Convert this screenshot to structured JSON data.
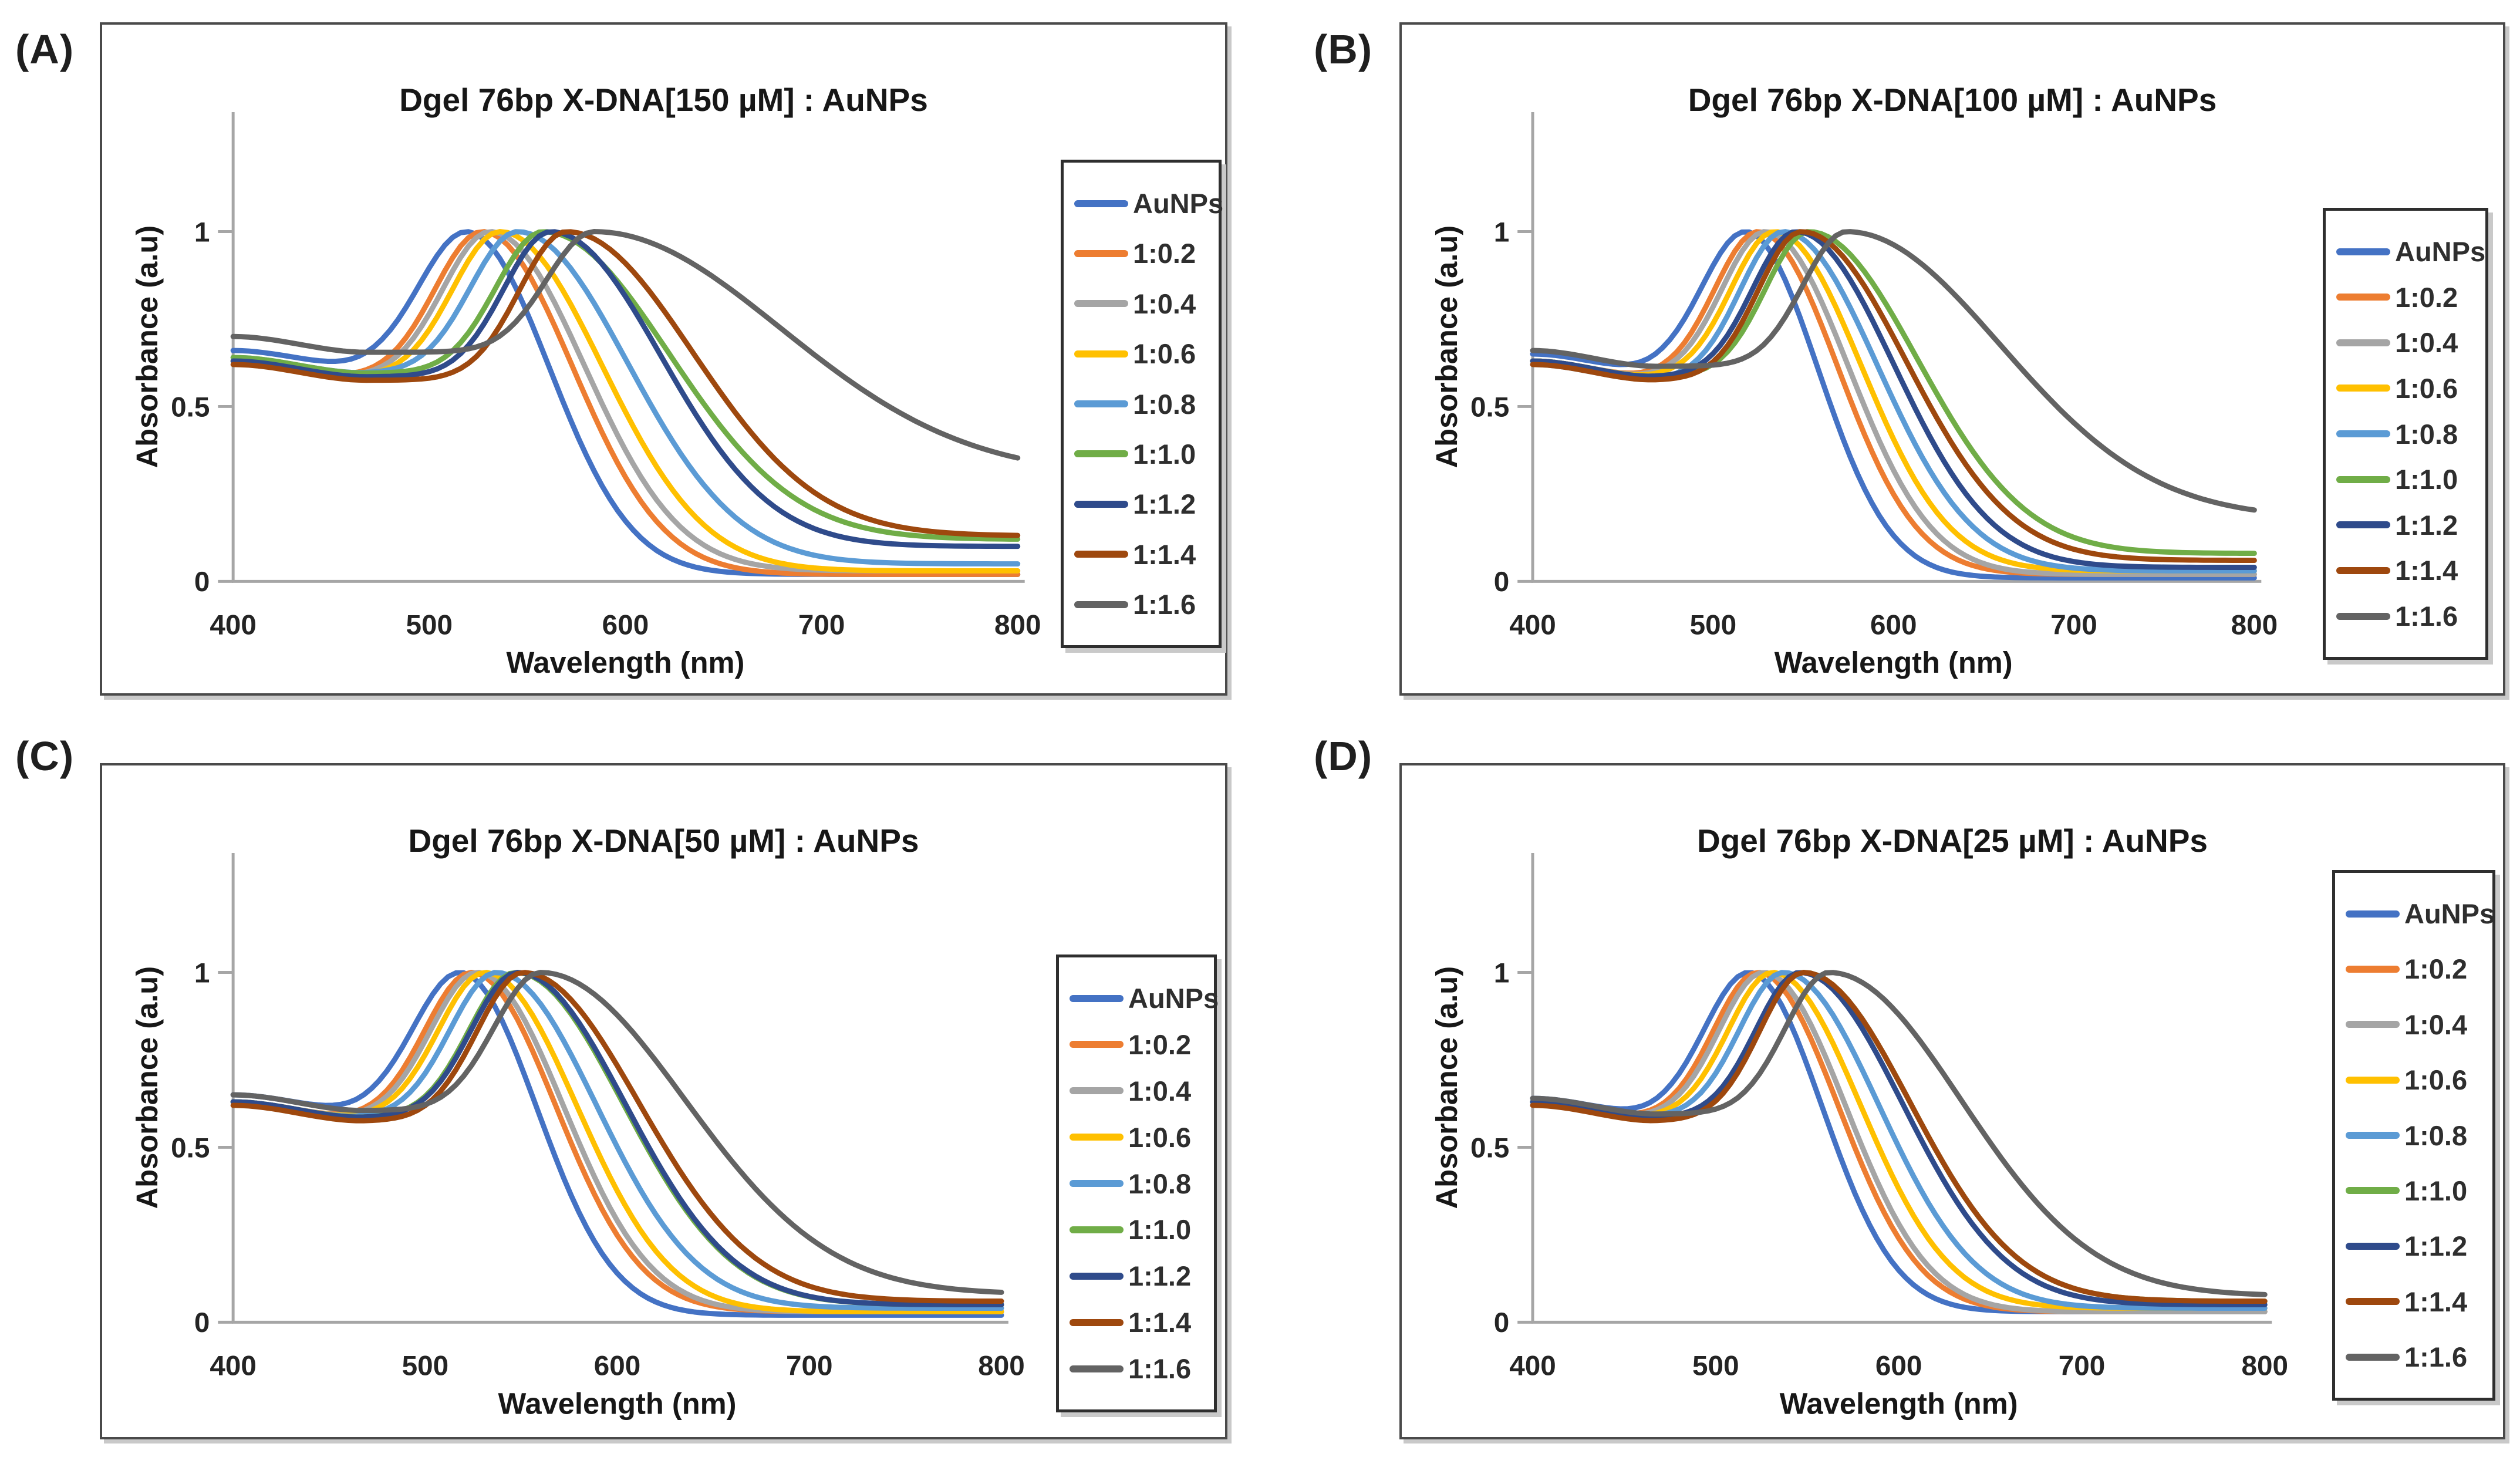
{
  "figure": {
    "layout": "2x2 grid of UV-Vis absorbance spectra panels",
    "background_color": "#ffffff"
  },
  "axes": {
    "x_label": "Wavelength (nm)",
    "y_label": "Absorbance (a.u)",
    "x_tick_labels": [
      "400",
      "500",
      "600",
      "700",
      "800"
    ],
    "y_tick_labels": [
      "0",
      "0.5",
      "1"
    ],
    "x_range": [
      400,
      800
    ],
    "y_range": [
      0,
      1.2
    ],
    "grid": "off",
    "axis_color": "#a6a6a6"
  },
  "legend": {
    "position": "right-inside",
    "entries": [
      "AuNPs",
      "1:0.2",
      "1:0.4",
      "1:0.6",
      "1:0.8",
      "1:1.0",
      "1:1.2",
      "1:1.4",
      "1:1.6"
    ]
  },
  "chart_data": [
    {
      "panel_label": "(A)",
      "type": "line",
      "title": "Dgel 76bp X-DNA[150 µM] : AuNPs",
      "xlabel": "Wavelength (nm)",
      "ylabel": "Absorbance (a.u)",
      "x_range": [
        400,
        800
      ],
      "x_ticks": [
        400,
        500,
        600,
        700,
        800
      ],
      "y_ticks": [
        0,
        0.5,
        1
      ],
      "normalization": "all spectra peak-normalized to 1.0",
      "series": [
        {
          "name": "AuNPs",
          "color": "#4472C4",
          "peak_nm": 519,
          "peak_abs": 1.0,
          "abs_400nm": 0.66,
          "abs_800nm": 0.02,
          "right_halfwidth_nm": 42
        },
        {
          "name": "1:0.2",
          "color": "#ED7D31",
          "peak_nm": 527,
          "peak_abs": 1.0,
          "abs_400nm": 0.63,
          "abs_800nm": 0.02,
          "right_halfwidth_nm": 46
        },
        {
          "name": "1:0.4",
          "color": "#A5A5A5",
          "peak_nm": 531,
          "peak_abs": 1.0,
          "abs_400nm": 0.63,
          "abs_800nm": 0.03,
          "right_halfwidth_nm": 48
        },
        {
          "name": "1:0.6",
          "color": "#FFC000",
          "peak_nm": 536,
          "peak_abs": 1.0,
          "abs_400nm": 0.63,
          "abs_800nm": 0.03,
          "right_halfwidth_nm": 52
        },
        {
          "name": "1:0.8",
          "color": "#5B9BD5",
          "peak_nm": 545,
          "peak_abs": 1.0,
          "abs_400nm": 0.64,
          "abs_800nm": 0.05,
          "right_halfwidth_nm": 56
        },
        {
          "name": "1:1.0",
          "color": "#70AD47",
          "peak_nm": 558,
          "peak_abs": 1.0,
          "abs_400nm": 0.64,
          "abs_800nm": 0.12,
          "right_halfwidth_nm": 64
        },
        {
          "name": "1:1.2",
          "color": "#2F4B8B",
          "peak_nm": 562,
          "peak_abs": 1.0,
          "abs_400nm": 0.63,
          "abs_800nm": 0.1,
          "right_halfwidth_nm": 56
        },
        {
          "name": "1:1.4",
          "color": "#9E480E",
          "peak_nm": 570,
          "peak_abs": 1.0,
          "abs_400nm": 0.62,
          "abs_800nm": 0.13,
          "right_halfwidth_nm": 64
        },
        {
          "name": "1:1.6",
          "color": "#636363",
          "peak_nm": 584,
          "peak_abs": 1.0,
          "abs_400nm": 0.7,
          "abs_800nm": 0.3,
          "right_halfwidth_nm": 95
        }
      ]
    },
    {
      "panel_label": "(B)",
      "type": "line",
      "title": "Dgel 76bp X-DNA[100 µM] : AuNPs",
      "xlabel": "Wavelength (nm)",
      "ylabel": "Absorbance (a.u)",
      "x_range": [
        400,
        800
      ],
      "x_ticks": [
        400,
        500,
        600,
        700,
        800
      ],
      "y_ticks": [
        0,
        0.5,
        1
      ],
      "normalization": "all spectra peak-normalized to 1.0",
      "series": [
        {
          "name": "AuNPs",
          "color": "#4472C4",
          "peak_nm": 518,
          "peak_abs": 1.0,
          "abs_400nm": 0.65,
          "abs_800nm": 0.01,
          "right_halfwidth_nm": 40
        },
        {
          "name": "1:0.2",
          "color": "#ED7D31",
          "peak_nm": 525,
          "peak_abs": 1.0,
          "abs_400nm": 0.63,
          "abs_800nm": 0.02,
          "right_halfwidth_nm": 44
        },
        {
          "name": "1:0.4",
          "color": "#A5A5A5",
          "peak_nm": 529,
          "peak_abs": 1.0,
          "abs_400nm": 0.63,
          "abs_800nm": 0.02,
          "right_halfwidth_nm": 46
        },
        {
          "name": "1:0.6",
          "color": "#FFC000",
          "peak_nm": 534,
          "peak_abs": 1.0,
          "abs_400nm": 0.63,
          "abs_800nm": 0.03,
          "right_halfwidth_nm": 48
        },
        {
          "name": "1:0.8",
          "color": "#5B9BD5",
          "peak_nm": 539,
          "peak_abs": 1.0,
          "abs_400nm": 0.62,
          "abs_800nm": 0.03,
          "right_halfwidth_nm": 52
        },
        {
          "name": "1:1.0",
          "color": "#70AD47",
          "peak_nm": 553,
          "peak_abs": 1.0,
          "abs_400nm": 0.63,
          "abs_800nm": 0.08,
          "right_halfwidth_nm": 60
        },
        {
          "name": "1:1.2",
          "color": "#2F4B8B",
          "peak_nm": 546,
          "peak_abs": 1.0,
          "abs_400nm": 0.63,
          "abs_800nm": 0.04,
          "right_halfwidth_nm": 54
        },
        {
          "name": "1:1.4",
          "color": "#9E480E",
          "peak_nm": 549,
          "peak_abs": 1.0,
          "abs_400nm": 0.62,
          "abs_800nm": 0.06,
          "right_halfwidth_nm": 58
        },
        {
          "name": "1:1.6",
          "color": "#636363",
          "peak_nm": 574,
          "peak_abs": 1.0,
          "abs_400nm": 0.66,
          "abs_800nm": 0.18,
          "right_halfwidth_nm": 85
        }
      ]
    },
    {
      "panel_label": "(C)",
      "type": "line",
      "title": "Dgel 76bp X-DNA[50 µM] : AuNPs",
      "xlabel": "Wavelength (nm)",
      "ylabel": "Absorbance (a.u)",
      "x_range": [
        400,
        800
      ],
      "x_ticks": [
        400,
        500,
        600,
        700,
        800
      ],
      "y_ticks": [
        0,
        0.5,
        1
      ],
      "normalization": "all spectra peak-normalized to 1.0",
      "series": [
        {
          "name": "AuNPs",
          "color": "#4472C4",
          "peak_nm": 518,
          "peak_abs": 1.0,
          "abs_400nm": 0.65,
          "abs_800nm": 0.02,
          "right_halfwidth_nm": 40
        },
        {
          "name": "1:0.2",
          "color": "#ED7D31",
          "peak_nm": 524,
          "peak_abs": 1.0,
          "abs_400nm": 0.63,
          "abs_800nm": 0.03,
          "right_halfwidth_nm": 44
        },
        {
          "name": "1:0.4",
          "color": "#A5A5A5",
          "peak_nm": 527,
          "peak_abs": 1.0,
          "abs_400nm": 0.63,
          "abs_800nm": 0.03,
          "right_halfwidth_nm": 45
        },
        {
          "name": "1:0.6",
          "color": "#FFC000",
          "peak_nm": 531,
          "peak_abs": 1.0,
          "abs_400nm": 0.63,
          "abs_800nm": 0.03,
          "right_halfwidth_nm": 48
        },
        {
          "name": "1:0.8",
          "color": "#5B9BD5",
          "peak_nm": 537,
          "peak_abs": 1.0,
          "abs_400nm": 0.63,
          "abs_800nm": 0.04,
          "right_halfwidth_nm": 52
        },
        {
          "name": "1:1.0",
          "color": "#70AD47",
          "peak_nm": 547,
          "peak_abs": 1.0,
          "abs_400nm": 0.63,
          "abs_800nm": 0.05,
          "right_halfwidth_nm": 56
        },
        {
          "name": "1:1.2",
          "color": "#2F4B8B",
          "peak_nm": 548,
          "peak_abs": 1.0,
          "abs_400nm": 0.63,
          "abs_800nm": 0.05,
          "right_halfwidth_nm": 56
        },
        {
          "name": "1:1.4",
          "color": "#9E480E",
          "peak_nm": 551,
          "peak_abs": 1.0,
          "abs_400nm": 0.62,
          "abs_800nm": 0.06,
          "right_halfwidth_nm": 60
        },
        {
          "name": "1:1.6",
          "color": "#636363",
          "peak_nm": 560,
          "peak_abs": 1.0,
          "abs_400nm": 0.65,
          "abs_800nm": 0.08,
          "right_halfwidth_nm": 75
        }
      ]
    },
    {
      "panel_label": "(D)",
      "type": "line",
      "title": "Dgel 76bp X-DNA[25 µM] : AuNPs",
      "xlabel": "Wavelength (nm)",
      "ylabel": "Absorbance (a.u)",
      "x_range": [
        400,
        800
      ],
      "x_ticks": [
        400,
        500,
        600,
        700,
        800
      ],
      "y_ticks": [
        0,
        0.5,
        1
      ],
      "normalization": "all spectra peak-normalized to 1.0",
      "series": [
        {
          "name": "AuNPs",
          "color": "#4472C4",
          "peak_nm": 518,
          "peak_abs": 1.0,
          "abs_400nm": 0.64,
          "abs_800nm": 0.03,
          "right_halfwidth_nm": 40
        },
        {
          "name": "1:0.2",
          "color": "#ED7D31",
          "peak_nm": 523,
          "peak_abs": 1.0,
          "abs_400nm": 0.63,
          "abs_800nm": 0.03,
          "right_halfwidth_nm": 44
        },
        {
          "name": "1:0.4",
          "color": "#A5A5A5",
          "peak_nm": 526,
          "peak_abs": 1.0,
          "abs_400nm": 0.63,
          "abs_800nm": 0.03,
          "right_halfwidth_nm": 45
        },
        {
          "name": "1:0.6",
          "color": "#FFC000",
          "peak_nm": 531,
          "peak_abs": 1.0,
          "abs_400nm": 0.63,
          "abs_800nm": 0.04,
          "right_halfwidth_nm": 48
        },
        {
          "name": "1:0.8",
          "color": "#5B9BD5",
          "peak_nm": 537,
          "peak_abs": 1.0,
          "abs_400nm": 0.63,
          "abs_800nm": 0.04,
          "right_halfwidth_nm": 52
        },
        {
          "name": "1:1.0",
          "color": "#70AD47",
          "peak_nm": 548,
          "peak_abs": 1.0,
          "abs_400nm": 0.63,
          "abs_800nm": 0.06,
          "right_halfwidth_nm": 58
        },
        {
          "name": "1:1.2",
          "color": "#2F4B8B",
          "peak_nm": 546,
          "peak_abs": 1.0,
          "abs_400nm": 0.63,
          "abs_800nm": 0.05,
          "right_halfwidth_nm": 56
        },
        {
          "name": "1:1.4",
          "color": "#9E480E",
          "peak_nm": 548,
          "peak_abs": 1.0,
          "abs_400nm": 0.62,
          "abs_800nm": 0.06,
          "right_halfwidth_nm": 58
        },
        {
          "name": "1:1.6",
          "color": "#636363",
          "peak_nm": 562,
          "peak_abs": 1.0,
          "abs_400nm": 0.64,
          "abs_800nm": 0.075,
          "right_halfwidth_nm": 72
        }
      ]
    }
  ]
}
